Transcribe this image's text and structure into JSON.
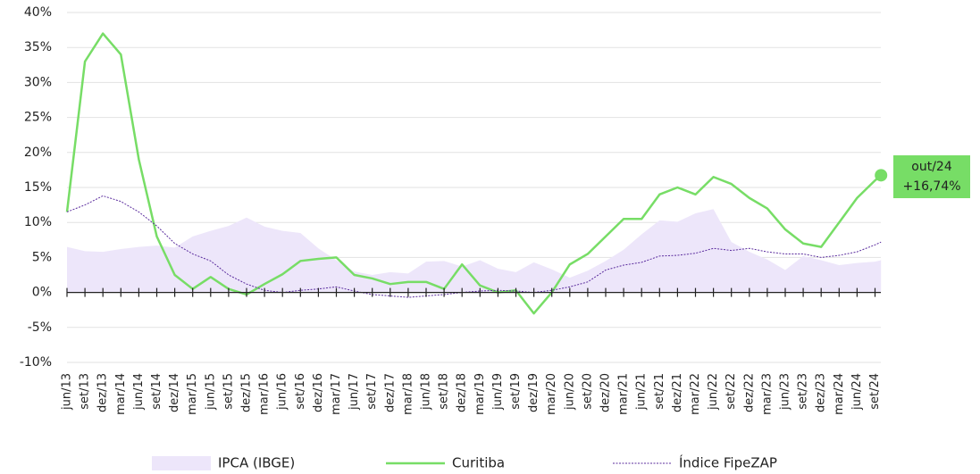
{
  "chart_data": {
    "type": "line",
    "categories": [
      "jun/13",
      "set/13",
      "dez/13",
      "mar/14",
      "jun/14",
      "set/14",
      "dez/14",
      "mar/15",
      "jun/15",
      "set/15",
      "dez/15",
      "mar/16",
      "jun/16",
      "set/16",
      "dez/16",
      "mar/17",
      "jun/17",
      "set/17",
      "dez/17",
      "mar/18",
      "jun/18",
      "set/18",
      "dez/18",
      "mar/19",
      "jun/19",
      "set/19",
      "dez/19",
      "mar/20",
      "jun/20",
      "set/20",
      "dez/20",
      "mar/21",
      "jun/21",
      "set/21",
      "dez/21",
      "mar/22",
      "jun/22",
      "set/22",
      "dez/22",
      "mar/23",
      "jun/23",
      "set/23",
      "dez/23",
      "mar/24",
      "jun/24",
      "set/24",
      null
    ],
    "series": [
      {
        "name": "IPCA (IBGE)",
        "style": "area",
        "color": "#ede6fa",
        "values": [
          6.5,
          5.9,
          5.8,
          6.2,
          6.5,
          6.7,
          6.4,
          8,
          8.8,
          9.5,
          10.7,
          9.4,
          8.8,
          8.5,
          6.3,
          4.6,
          3,
          2.5,
          2.9,
          2.7,
          4.4,
          4.5,
          3.7,
          4.6,
          3.4,
          2.9,
          4.3,
          3.3,
          2.1,
          3.1,
          4.5,
          6.1,
          8.3,
          10.3,
          10.1,
          11.3,
          11.9,
          7.2,
          5.8,
          4.7,
          3.2,
          5.2,
          4.6,
          3.9,
          4.2,
          4.4,
          4.6
        ]
      },
      {
        "name": "Curitiba",
        "style": "solid",
        "color": "#77dd66",
        "values": [
          11.5,
          33,
          37,
          34,
          19,
          8,
          2.5,
          0.5,
          2.2,
          0.5,
          -0.3,
          1.2,
          2.6,
          4.5,
          4.8,
          5,
          2.5,
          2,
          1.2,
          1.5,
          1.5,
          0.5,
          4,
          1,
          0,
          0.3,
          -3,
          0,
          4,
          5.5,
          8,
          10.5,
          10.5,
          14,
          15,
          14,
          16.5,
          15.5,
          13.5,
          12,
          9,
          7,
          6.5,
          10,
          13.5,
          16,
          16.74
        ]
      },
      {
        "name": "Índice FipeZAP",
        "style": "dotted",
        "color": "#5b2d9e",
        "values": [
          11.5,
          12.5,
          13.8,
          13,
          11.5,
          9.5,
          7,
          5.5,
          4.5,
          2.5,
          1.2,
          0.3,
          0,
          0.3,
          0.5,
          0.8,
          0.2,
          -0.3,
          -0.5,
          -0.7,
          -0.5,
          -0.3,
          0,
          0.2,
          0.3,
          0.2,
          0,
          0.3,
          0.8,
          1.5,
          3.2,
          3.9,
          4.3,
          5.2,
          5.3,
          5.6,
          6.3,
          6,
          6.3,
          5.8,
          5.5,
          5.5,
          5,
          5.3,
          5.8,
          6.8,
          7.2
        ]
      }
    ],
    "annotation": {
      "x_label": "out/24",
      "value_label": "+16,74%"
    },
    "ylim": [
      -10,
      40
    ],
    "yticks": [
      {
        "value": -10,
        "label": "-10%"
      },
      {
        "value": -5,
        "label": "-5%"
      },
      {
        "value": 0,
        "label": "0%"
      },
      {
        "value": 5,
        "label": "5%"
      },
      {
        "value": 10,
        "label": "10%"
      },
      {
        "value": 15,
        "label": "15%"
      },
      {
        "value": 20,
        "label": "20%"
      },
      {
        "value": 25,
        "label": "25%"
      },
      {
        "value": 30,
        "label": "30%"
      },
      {
        "value": 35,
        "label": "35%"
      },
      {
        "value": 40,
        "label": "40%"
      }
    ],
    "grid": true
  }
}
